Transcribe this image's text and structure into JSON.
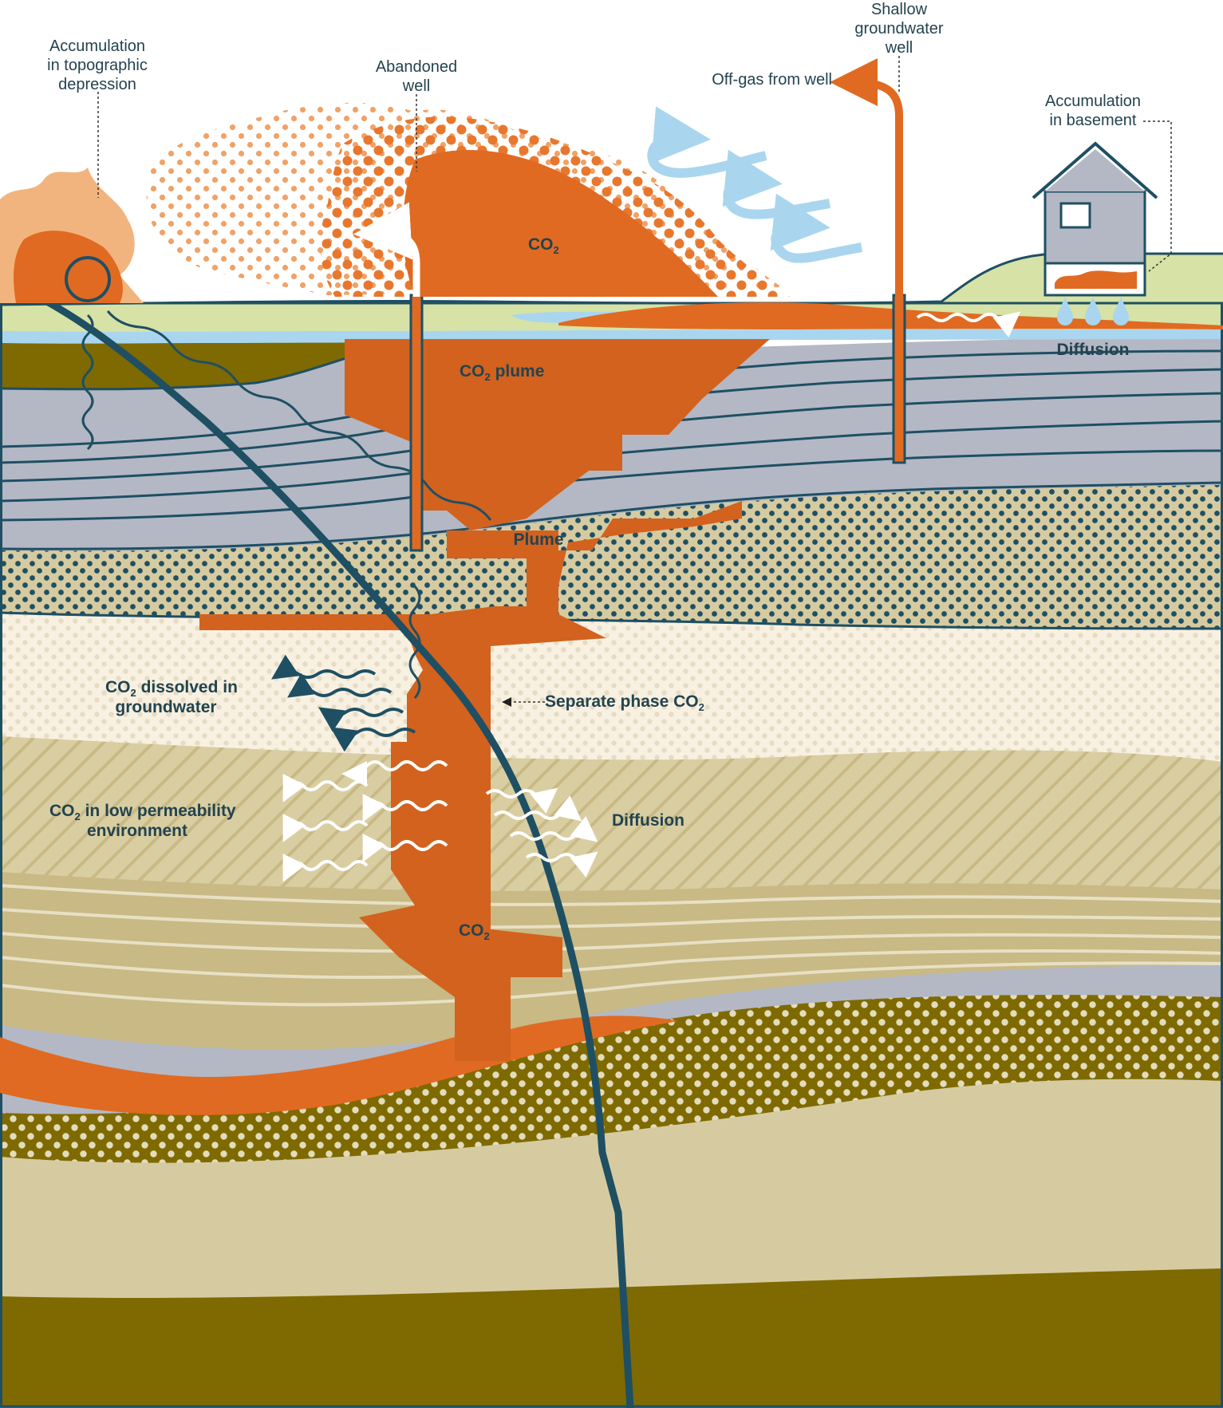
{
  "labels": {
    "accumulation_depression": [
      "Accumulation",
      "in topographic",
      "depression"
    ],
    "abandoned_well": [
      "Abandoned",
      "well"
    ],
    "shallow_well": [
      "Shallow",
      "groundwater",
      "well"
    ],
    "offgas": "Off-gas from well",
    "accumulation_basement": [
      "Accumulation",
      "in basement"
    ],
    "co2_cloud": "CO",
    "co2_plume": "CO",
    "co2_plume_rest": " plume",
    "diffusion_top": "Diffusion",
    "plume": "Plume",
    "dissolved": [
      "CO",
      " dissolved in",
      "groundwater"
    ],
    "separate_phase": "Separate phase CO",
    "low_perm": [
      "CO",
      " in low permeability",
      "environment"
    ],
    "diffusion_mid": "Diffusion",
    "co2_deep": "CO",
    "subscript_two": "2"
  },
  "colors": {
    "co2_orange": "#e06a22",
    "co2_dark": "#d2621e",
    "fault": "#1f4f63",
    "grass": "#d6e2a6",
    "water_blue": "#a9d6ee",
    "gray_layer": "#b3b8c4",
    "olive": "#7e6a00",
    "sand": "#d6cba0",
    "cream": "#f8f1e2",
    "tan_stripe": "#c8b985",
    "line_dark": "#1f4f63"
  }
}
